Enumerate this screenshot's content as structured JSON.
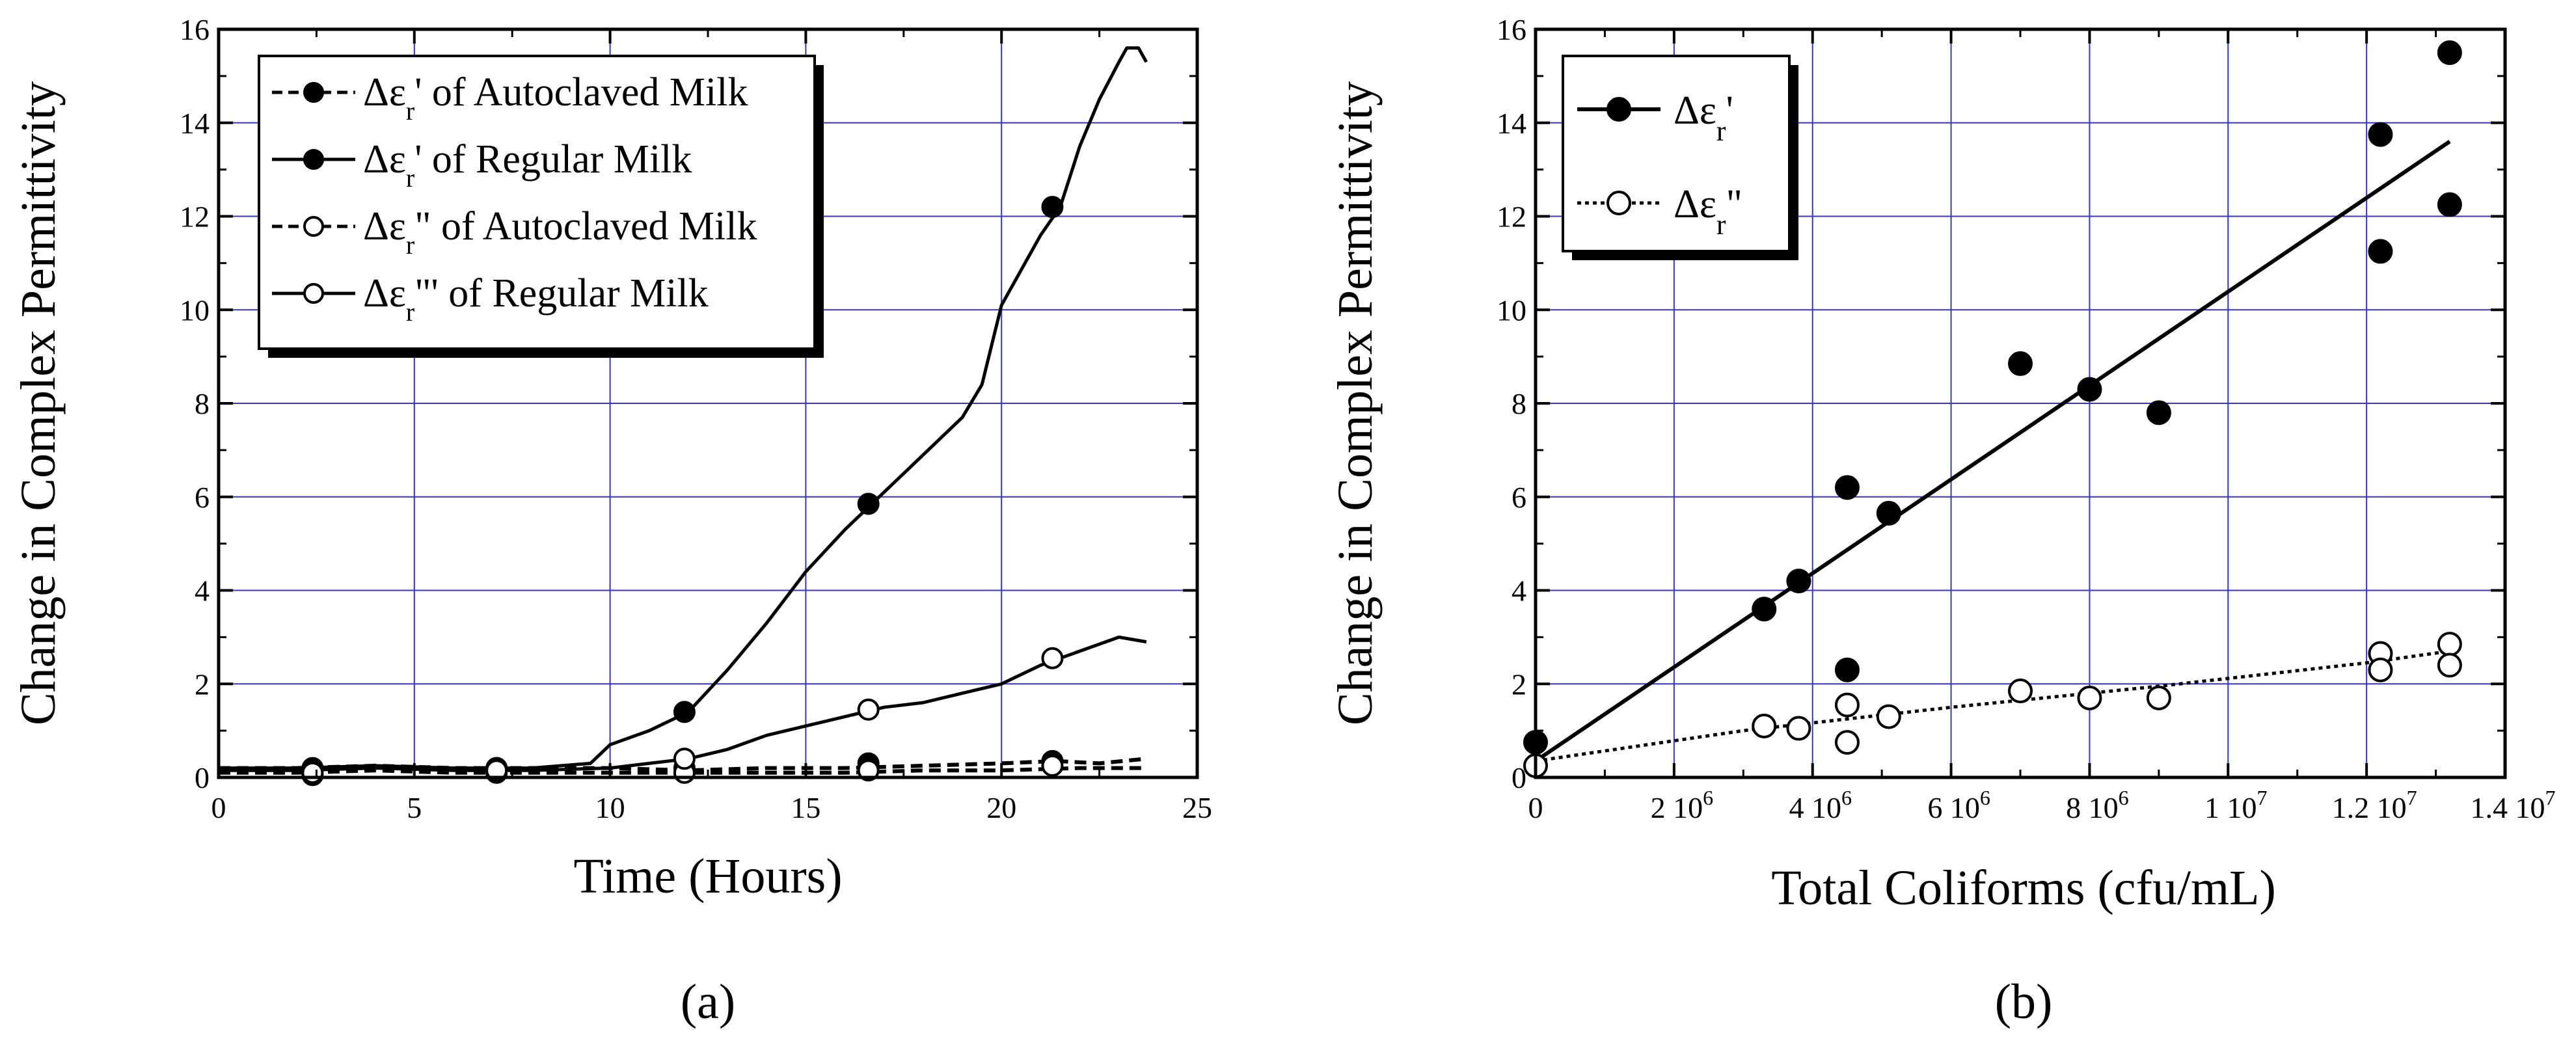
{
  "chart_data": [
    {
      "type": "line",
      "panel_label": "(a)",
      "xlabel": "Time (Hours)",
      "ylabel": "Change in Complex Permittivity",
      "xlim": [
        0,
        25
      ],
      "ylim": [
        0,
        16
      ],
      "xticks": [
        0,
        5,
        10,
        15,
        20,
        25
      ],
      "yticks": [
        0,
        2,
        4,
        6,
        8,
        10,
        12,
        14,
        16
      ],
      "grid": true,
      "legend_position": "top-left",
      "series": [
        {
          "name": "Δε' of Autoclaved Milk",
          "legend": {
            "pre": "Δε",
            "sub": "r",
            "post": "' of Autoclaved Milk"
          },
          "line": "dashed",
          "marker": "filled-circle",
          "x": [
            0,
            2,
            4,
            6,
            8,
            10,
            12,
            14,
            16,
            18,
            20,
            21.4,
            22.5,
            23.7
          ],
          "y": [
            0.2,
            0.2,
            0.25,
            0.2,
            0.2,
            0.2,
            0.15,
            0.2,
            0.2,
            0.25,
            0.3,
            0.35,
            0.3,
            0.4
          ],
          "markers_x": [
            2.4,
            7.1,
            11.9,
            16.6,
            21.3
          ],
          "markers_y": [
            0.15,
            0.2,
            0.2,
            0.3,
            0.35
          ]
        },
        {
          "name": "Δε' of Regular Milk",
          "legend": {
            "pre": "Δε",
            "sub": "r",
            "post": "' of Regular Milk"
          },
          "line": "solid",
          "marker": "filled-circle",
          "x": [
            0,
            2,
            4,
            6,
            8,
            9.5,
            10,
            11,
            12,
            13,
            14,
            15,
            16,
            17,
            18,
            19,
            19.5,
            20,
            21,
            21.5,
            22,
            22.5,
            23,
            23.2,
            23.5,
            23.7
          ],
          "y": [
            0.2,
            0.2,
            0.25,
            0.2,
            0.2,
            0.3,
            0.7,
            1.0,
            1.4,
            2.3,
            3.3,
            4.4,
            5.3,
            6.1,
            6.9,
            7.7,
            8.4,
            10.1,
            11.6,
            12.2,
            13.5,
            14.5,
            15.3,
            15.6,
            15.6,
            15.3
          ],
          "markers_x": [
            2.4,
            7.1,
            11.9,
            16.6,
            21.3
          ],
          "markers_y": [
            0.2,
            0.2,
            1.4,
            5.85,
            12.2
          ]
        },
        {
          "name": "Δε\" of Autoclaved Milk",
          "legend": {
            "pre": "Δε",
            "sub": "r",
            "post": "\" of Autoclaved Milk"
          },
          "line": "dashed",
          "marker": "open-circle",
          "x": [
            0,
            2,
            4,
            6,
            8,
            10,
            12,
            14,
            16,
            18,
            20,
            22,
            23.7
          ],
          "y": [
            0.1,
            0.1,
            0.15,
            0.1,
            0.1,
            0.1,
            0.1,
            0.1,
            0.1,
            0.15,
            0.15,
            0.2,
            0.2
          ],
          "markers_x": [
            2.4,
            7.1,
            11.9,
            16.6,
            21.3
          ],
          "markers_y": [
            0.05,
            0.1,
            0.1,
            0.15,
            0.25
          ]
        },
        {
          "name": "Δε\"' of Regular Milk",
          "legend": {
            "pre": "Δε",
            "sub": "r",
            "post": "\"' of Regular Milk"
          },
          "line": "solid",
          "marker": "open-circle",
          "x": [
            0,
            2,
            4,
            6,
            8,
            10,
            11,
            12,
            13,
            14,
            15,
            16,
            17,
            18,
            19,
            20,
            21,
            22,
            23,
            23.7
          ],
          "y": [
            0.15,
            0.15,
            0.2,
            0.15,
            0.15,
            0.2,
            0.3,
            0.4,
            0.6,
            0.9,
            1.1,
            1.3,
            1.5,
            1.6,
            1.8,
            2.0,
            2.4,
            2.7,
            3.0,
            2.9
          ],
          "markers_x": [
            2.4,
            7.1,
            11.9,
            16.6,
            21.3
          ],
          "markers_y": [
            0.1,
            0.15,
            0.4,
            1.45,
            2.55
          ]
        }
      ]
    },
    {
      "type": "scatter",
      "panel_label": "(b)",
      "xlabel": "Total Coliforms (cfu/mL)",
      "ylabel": "Change in Complex Permittivity",
      "xlim": [
        0,
        14000000
      ],
      "ylim": [
        0,
        16
      ],
      "xtick_labels": [
        "0",
        "2 10",
        "4 10",
        "6 10",
        "8 10",
        "1 10",
        "1.2 10",
        "1.4 10"
      ],
      "xtick_exponents": [
        "",
        "6",
        "6",
        "6",
        "6",
        "7",
        "7",
        "7"
      ],
      "xtick_values": [
        0,
        2000000,
        4000000,
        6000000,
        8000000,
        10000000,
        12000000,
        14000000
      ],
      "yticks": [
        0,
        2,
        4,
        6,
        8,
        10,
        12,
        14,
        16
      ],
      "grid": true,
      "legend_position": "top-left",
      "series": [
        {
          "name": "Δε'",
          "legend": {
            "pre": "Δε",
            "sub": "r",
            "post": "'"
          },
          "marker": "filled-circle",
          "x": [
            0,
            3300000,
            3800000,
            4500000,
            4500000,
            5100000,
            7000000,
            8000000,
            9000000,
            12200000,
            12200000,
            13200000,
            13200000
          ],
          "y": [
            0.75,
            3.6,
            4.2,
            6.2,
            2.3,
            5.65,
            8.85,
            8.3,
            7.8,
            13.75,
            11.25,
            15.5,
            12.25
          ],
          "fit": {
            "line": "solid",
            "x": [
              0,
              13200000
            ],
            "y": [
              0.35,
              13.6
            ]
          }
        },
        {
          "name": "Δε\"",
          "legend": {
            "pre": "Δε",
            "sub": "r",
            "post": "\""
          },
          "marker": "open-circle",
          "x": [
            0,
            3300000,
            3800000,
            4500000,
            4500000,
            5100000,
            7000000,
            8000000,
            9000000,
            12200000,
            12200000,
            13200000,
            13200000
          ],
          "y": [
            0.25,
            1.1,
            1.05,
            1.55,
            0.75,
            1.3,
            1.85,
            1.7,
            1.7,
            2.65,
            2.3,
            2.85,
            2.4
          ],
          "fit": {
            "line": "dotted",
            "x": [
              0,
              3000000,
              6000000,
              9000000,
              12000000,
              13200000
            ],
            "y": [
              0.35,
              1.0,
              1.5,
              1.95,
              2.45,
              2.7
            ]
          }
        }
      ]
    }
  ]
}
